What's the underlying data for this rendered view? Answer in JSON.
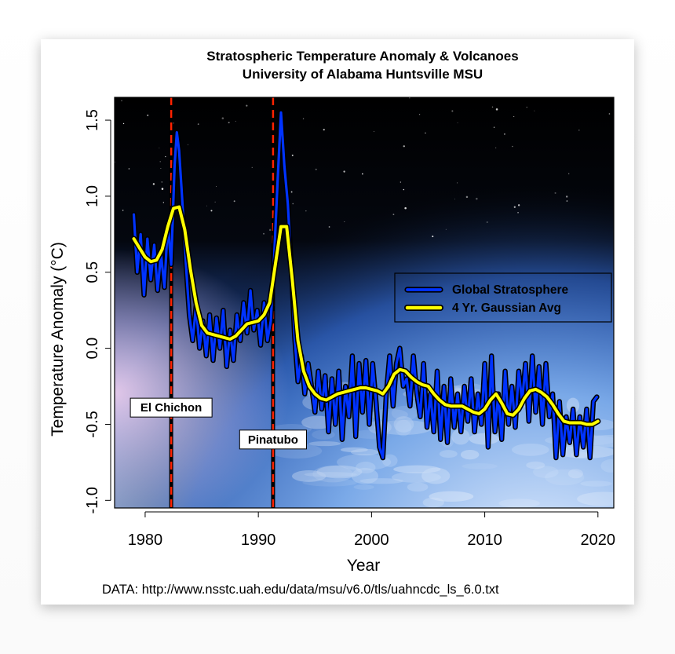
{
  "chart_data": {
    "type": "line",
    "title": "Stratospheric Temperature Anomaly & Volcanoes",
    "subtitle": "University of Alabama Huntsville MSU",
    "xlabel": "Year",
    "ylabel": "Temperature Anomaly (°C)",
    "xlim": [
      1977.3,
      2021.4
    ],
    "ylim": [
      -1.05,
      1.65
    ],
    "x_ticks": [
      1980,
      1990,
      2000,
      2010,
      2020
    ],
    "x_tick_labels": [
      "1980",
      "1990",
      "2000",
      "2010",
      "2020"
    ],
    "y_ticks": [
      -1.0,
      -0.5,
      0.0,
      0.5,
      1.0,
      1.5
    ],
    "y_tick_labels": [
      "-1.0",
      "-0.5",
      "0.0",
      "0.5",
      "1.0",
      "1.5"
    ],
    "grid": false,
    "legend_position": "right",
    "source_note": "DATA: http://www.nsstc.uah.edu/data/msu/v6.0/tls/uahncdc_ls_6.0.txt",
    "colors": {
      "raw_series": "#0033ff",
      "smooth_series": "#ffff00",
      "outline": "#000000",
      "volcano_line": "#ff2200"
    },
    "series": [
      {
        "name": "Global Stratosphere",
        "x": [
          1979.0,
          1979.3,
          1979.6,
          1979.9,
          1980.2,
          1980.5,
          1980.8,
          1981.1,
          1981.4,
          1981.7,
          1982.0,
          1982.3,
          1982.6,
          1982.8,
          1983.0,
          1983.3,
          1983.6,
          1983.9,
          1984.2,
          1984.5,
          1984.8,
          1985.1,
          1985.4,
          1985.7,
          1986.0,
          1986.3,
          1986.6,
          1986.9,
          1987.2,
          1987.5,
          1987.8,
          1988.1,
          1988.4,
          1988.7,
          1989.0,
          1989.3,
          1989.6,
          1989.9,
          1990.2,
          1990.5,
          1990.8,
          1991.1,
          1991.4,
          1991.7,
          1992.0,
          1992.3,
          1992.6,
          1992.9,
          1993.2,
          1993.5,
          1993.8,
          1994.1,
          1994.4,
          1994.7,
          1995.0,
          1995.3,
          1995.6,
          1995.9,
          1996.2,
          1996.5,
          1996.8,
          1997.1,
          1997.4,
          1997.7,
          1998.0,
          1998.3,
          1998.6,
          1998.9,
          1999.2,
          1999.5,
          1999.8,
          2000.1,
          2000.4,
          2000.7,
          2001.0,
          2001.3,
          2001.6,
          2001.9,
          2002.2,
          2002.5,
          2002.8,
          2003.1,
          2003.4,
          2003.7,
          2004.0,
          2004.3,
          2004.6,
          2004.9,
          2005.2,
          2005.5,
          2005.8,
          2006.1,
          2006.4,
          2006.7,
          2007.0,
          2007.3,
          2007.6,
          2007.9,
          2008.2,
          2008.5,
          2008.8,
          2009.1,
          2009.4,
          2009.7,
          2010.0,
          2010.3,
          2010.6,
          2010.9,
          2011.2,
          2011.5,
          2011.8,
          2012.1,
          2012.4,
          2012.7,
          2013.0,
          2013.3,
          2013.6,
          2013.9,
          2014.2,
          2014.5,
          2014.8,
          2015.1,
          2015.4,
          2015.7,
          2016.0,
          2016.3,
          2016.6,
          2016.9,
          2017.2,
          2017.5,
          2017.8,
          2018.1,
          2018.4,
          2018.7,
          2019.0,
          2019.3,
          2019.6,
          2019.9
        ],
        "values": [
          0.88,
          0.5,
          0.75,
          0.35,
          0.72,
          0.45,
          0.68,
          0.38,
          0.62,
          0.4,
          0.82,
          0.55,
          1.2,
          1.42,
          1.3,
          0.95,
          0.55,
          0.22,
          0.05,
          0.28,
          0.0,
          0.18,
          -0.05,
          0.22,
          -0.08,
          0.2,
          0.0,
          0.25,
          -0.12,
          0.12,
          -0.08,
          0.22,
          0.05,
          0.3,
          0.1,
          0.38,
          0.12,
          0.25,
          0.02,
          0.3,
          0.05,
          0.18,
          0.6,
          1.1,
          1.55,
          1.2,
          0.95,
          0.55,
          0.08,
          -0.22,
          -0.05,
          -0.3,
          -0.1,
          -0.25,
          -0.42,
          -0.15,
          -0.4,
          -0.18,
          -0.55,
          -0.2,
          -0.5,
          -0.15,
          -0.6,
          -0.25,
          -0.45,
          -0.05,
          -0.58,
          -0.1,
          -0.42,
          -0.08,
          -0.5,
          -0.1,
          -0.35,
          -0.65,
          -0.72,
          -0.3,
          -0.05,
          -0.38,
          -0.1,
          0.0,
          -0.25,
          -0.2,
          -0.38,
          -0.05,
          -0.3,
          -0.45,
          -0.1,
          -0.52,
          -0.3,
          -0.55,
          -0.15,
          -0.6,
          -0.25,
          -0.62,
          -0.2,
          -0.52,
          -0.3,
          -0.55,
          -0.25,
          -0.48,
          -0.2,
          -0.55,
          -0.3,
          -0.5,
          -0.1,
          -0.65,
          -0.05,
          -0.55,
          -0.3,
          -0.6,
          -0.15,
          -0.5,
          -0.25,
          -0.52,
          -0.15,
          -0.35,
          -0.1,
          -0.48,
          -0.05,
          -0.42,
          -0.12,
          -0.5,
          -0.1,
          -0.45,
          -0.3,
          -0.72,
          -0.35,
          -0.7,
          -0.45,
          -0.62,
          -0.4,
          -0.7,
          -0.45,
          -0.65,
          -0.4,
          -0.72,
          -0.35,
          -0.32
        ],
        "color": "#0033ff"
      },
      {
        "name": "4 Yr. Gaussian Avg",
        "x": [
          1979.0,
          1979.5,
          1980.0,
          1980.5,
          1981.0,
          1981.5,
          1982.0,
          1982.5,
          1983.0,
          1983.5,
          1984.0,
          1984.5,
          1985.0,
          1985.5,
          1986.0,
          1986.5,
          1987.0,
          1987.5,
          1988.0,
          1988.5,
          1989.0,
          1989.5,
          1990.0,
          1990.5,
          1991.0,
          1991.5,
          1992.0,
          1992.5,
          1993.0,
          1993.5,
          1994.0,
          1994.5,
          1995.0,
          1995.5,
          1996.0,
          1996.5,
          1997.0,
          1997.5,
          1998.0,
          1998.5,
          1999.0,
          1999.5,
          2000.0,
          2000.5,
          2001.0,
          2001.5,
          2002.0,
          2002.5,
          2003.0,
          2003.5,
          2004.0,
          2004.5,
          2005.0,
          2005.5,
          2006.0,
          2006.5,
          2007.0,
          2007.5,
          2008.0,
          2008.5,
          2009.0,
          2009.5,
          2010.0,
          2010.5,
          2011.0,
          2011.5,
          2012.0,
          2012.5,
          2013.0,
          2013.5,
          2014.0,
          2014.5,
          2015.0,
          2015.5,
          2016.0,
          2016.5,
          2017.0,
          2017.5,
          2018.0,
          2018.5,
          2019.0,
          2019.5,
          2020.0
        ],
        "values": [
          0.72,
          0.66,
          0.6,
          0.57,
          0.58,
          0.65,
          0.8,
          0.92,
          0.93,
          0.78,
          0.52,
          0.3,
          0.15,
          0.1,
          0.09,
          0.08,
          0.07,
          0.06,
          0.08,
          0.12,
          0.16,
          0.17,
          0.18,
          0.22,
          0.3,
          0.55,
          0.8,
          0.8,
          0.45,
          0.05,
          -0.15,
          -0.25,
          -0.3,
          -0.33,
          -0.34,
          -0.32,
          -0.3,
          -0.29,
          -0.28,
          -0.27,
          -0.26,
          -0.26,
          -0.27,
          -0.28,
          -0.3,
          -0.25,
          -0.17,
          -0.14,
          -0.15,
          -0.19,
          -0.22,
          -0.24,
          -0.25,
          -0.3,
          -0.34,
          -0.37,
          -0.38,
          -0.38,
          -0.38,
          -0.4,
          -0.42,
          -0.43,
          -0.4,
          -0.34,
          -0.3,
          -0.36,
          -0.43,
          -0.44,
          -0.4,
          -0.33,
          -0.28,
          -0.27,
          -0.29,
          -0.32,
          -0.37,
          -0.43,
          -0.48,
          -0.49,
          -0.49,
          -0.49,
          -0.5,
          -0.5,
          -0.48
        ],
        "color": "#ffff00"
      }
    ],
    "volcanoes": [
      {
        "label": "El Chichon",
        "year": 1982.3
      },
      {
        "label": "Pinatubo",
        "year": 1991.3
      }
    ]
  }
}
